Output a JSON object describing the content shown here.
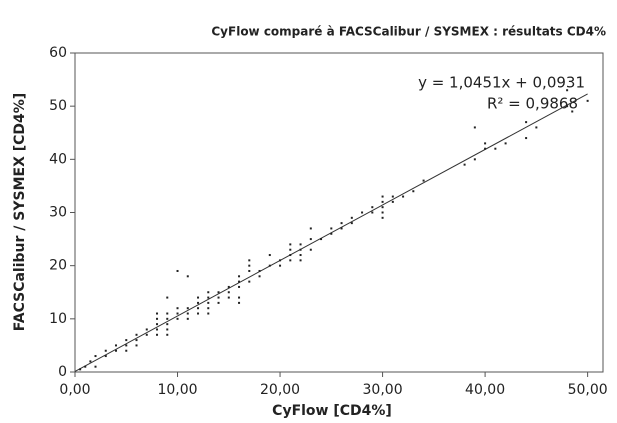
{
  "chart_data": {
    "type": "scatter",
    "title": "CyFlow comparé à FACSCalibur / SYSMEX : résultats CD4%",
    "x_label": "CyFlow [CD4%]",
    "y_label": "FACSCalibur / SYSMEX [CD4%]",
    "annotations": [
      "y = 1,0451x + 0,0931",
      "R² = 0,9868"
    ],
    "color": "#222222",
    "x": [
      0.5,
      1,
      1.5,
      2,
      2,
      3,
      3,
      4,
      4,
      5,
      5,
      5,
      6,
      6,
      6,
      7,
      7,
      8,
      8,
      8,
      8,
      8,
      9,
      9,
      9,
      9,
      9,
      9,
      10,
      10,
      10,
      10,
      11,
      11,
      11,
      11,
      12,
      12,
      12,
      12,
      13,
      13,
      13,
      13,
      13,
      14,
      14,
      14,
      15,
      15,
      15,
      16,
      16,
      16,
      16,
      16,
      17,
      17,
      17,
      17,
      18,
      18,
      19,
      19,
      20,
      20,
      21,
      21,
      21,
      21,
      22,
      22,
      22,
      22,
      23,
      23,
      23,
      24,
      25,
      25,
      26,
      26,
      27,
      27,
      28,
      29,
      29,
      30,
      30,
      30,
      30,
      30,
      31,
      31,
      32,
      33,
      34,
      38,
      39,
      39,
      40,
      40,
      41,
      42,
      44,
      44,
      45,
      48,
      48,
      48.5,
      50
    ],
    "values": [
      0.5,
      1,
      2,
      1,
      3,
      3,
      4,
      4,
      5,
      4,
      5,
      6,
      5,
      6,
      7,
      7,
      8,
      7,
      8,
      9,
      10,
      11,
      7,
      8,
      9,
      10,
      11,
      14,
      10,
      11,
      12,
      19,
      10,
      11,
      12,
      18,
      11,
      12,
      13,
      14,
      11,
      12,
      13,
      14,
      15,
      13,
      14,
      15,
      14,
      15,
      16,
      13,
      14,
      16,
      17,
      18,
      17,
      19,
      20,
      21,
      18,
      19,
      20,
      22,
      20,
      21,
      21,
      22,
      23,
      24,
      21,
      22,
      23,
      24,
      23,
      25,
      27,
      25,
      26,
      27,
      27,
      28,
      28,
      29,
      30,
      30,
      31,
      29,
      30,
      31,
      32,
      33,
      32,
      33,
      33,
      34,
      36,
      39,
      40,
      46,
      42,
      43,
      42,
      43,
      44,
      47,
      46,
      50,
      53,
      49,
      51
    ],
    "trendline": {
      "x": [
        0,
        50
      ],
      "y": [
        0.1,
        52.3
      ]
    },
    "xlim": [
      0,
      51.5
    ],
    "ylim": [
      0,
      60
    ],
    "xticks": [
      {
        "value": 0,
        "label": "0,00"
      },
      {
        "value": 10,
        "label": "10,00"
      },
      {
        "value": 20,
        "label": "20,00"
      },
      {
        "value": 30,
        "label": "30,00"
      },
      {
        "value": 40,
        "label": "40,00"
      },
      {
        "value": 50,
        "label": "50,00"
      }
    ],
    "yticks": [
      0,
      10,
      20,
      30,
      40,
      50,
      60
    ]
  }
}
